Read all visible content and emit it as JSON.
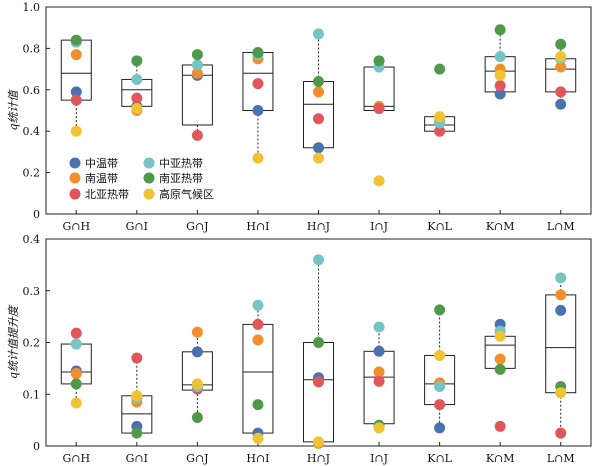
{
  "chart_data": [
    {
      "type": "box",
      "ylabel": "q统计值",
      "ylim": [
        0,
        1.0
      ],
      "yticks": [
        "0",
        "0.2",
        "0.4",
        "0.6",
        "0.8",
        "1.0"
      ],
      "categories": [
        "G∩H",
        "G∩I",
        "G∩J",
        "H∩I",
        "H∩J",
        "I∩J",
        "K∩L",
        "K∩M",
        "L∩M"
      ],
      "boxes": [
        {
          "q1": 0.55,
          "median": 0.68,
          "q3": 0.84,
          "min": 0.4,
          "max": 0.84
        },
        {
          "q1": 0.52,
          "median": 0.6,
          "q3": 0.65,
          "min": 0.5,
          "max": 0.74
        },
        {
          "q1": 0.43,
          "median": 0.67,
          "q3": 0.72,
          "min": 0.38,
          "max": 0.77
        },
        {
          "q1": 0.5,
          "median": 0.68,
          "q3": 0.78,
          "min": 0.27,
          "max": 0.78
        },
        {
          "q1": 0.32,
          "median": 0.53,
          "q3": 0.64,
          "min": 0.27,
          "max": 0.87
        },
        {
          "q1": 0.5,
          "median": 0.52,
          "q3": 0.71,
          "min": 0.5,
          "max": 0.74
        },
        {
          "q1": 0.4,
          "median": 0.43,
          "q3": 0.47,
          "min": 0.4,
          "max": 0.47
        },
        {
          "q1": 0.59,
          "median": 0.69,
          "q3": 0.76,
          "min": 0.57,
          "max": 0.89
        },
        {
          "q1": 0.59,
          "median": 0.7,
          "q3": 0.75,
          "min": 0.53,
          "max": 0.82
        }
      ],
      "series": [
        {
          "name": "中温带",
          "color": "#4a72b0",
          "values": [
            0.59,
            0.52,
            0.67,
            0.5,
            0.32,
            0.51,
            0.44,
            0.58,
            0.53
          ]
        },
        {
          "name": "南温带",
          "color": "#f28e2b",
          "values": [
            0.77,
            0.5,
            0.68,
            0.75,
            0.59,
            0.52,
            0.45,
            0.7,
            0.71
          ]
        },
        {
          "name": "北亚热带",
          "color": "#e15759",
          "values": [
            0.55,
            0.56,
            0.38,
            0.63,
            0.46,
            0.51,
            0.4,
            0.62,
            0.59
          ]
        },
        {
          "name": "中亚热带",
          "color": "#76c5c4",
          "values": [
            0.83,
            0.65,
            0.72,
            0.77,
            0.87,
            0.71,
            0.44,
            0.76,
            0.75
          ]
        },
        {
          "name": "南亚热带",
          "color": "#4e9a4a",
          "values": [
            0.84,
            0.74,
            0.77,
            0.78,
            0.64,
            0.74,
            0.7,
            0.89,
            0.82
          ]
        },
        {
          "name": "高原气候区",
          "color": "#f1c232",
          "values": [
            0.4,
            0.51,
            null,
            0.27,
            0.27,
            0.16,
            0.47,
            0.67,
            0.76
          ]
        }
      ],
      "legend": "lower-left"
    },
    {
      "type": "box",
      "ylabel": "q统计值提升度",
      "ylim": [
        0,
        0.4
      ],
      "yticks": [
        "0",
        "0.1",
        "0.2",
        "0.3",
        "0.4"
      ],
      "categories": [
        "G∩H",
        "G∩I",
        "G∩J",
        "H∩I",
        "H∩J",
        "I∩J",
        "K∩L",
        "K∩M",
        "L∩M"
      ],
      "boxes": [
        {
          "q1": 0.12,
          "median": 0.143,
          "q3": 0.197,
          "min": 0.083,
          "max": 0.218
        },
        {
          "q1": 0.025,
          "median": 0.062,
          "q3": 0.097,
          "min": 0.025,
          "max": 0.17
        },
        {
          "q1": 0.108,
          "median": 0.118,
          "q3": 0.182,
          "min": 0.055,
          "max": 0.22
        },
        {
          "q1": 0.025,
          "median": 0.143,
          "q3": 0.235,
          "min": 0.015,
          "max": 0.272
        },
        {
          "q1": 0.008,
          "median": 0.128,
          "q3": 0.2,
          "min": 0.005,
          "max": 0.36
        },
        {
          "q1": 0.043,
          "median": 0.133,
          "q3": 0.183,
          "min": 0.035,
          "max": 0.23
        },
        {
          "q1": 0.08,
          "median": 0.12,
          "q3": 0.175,
          "min": 0.035,
          "max": 0.263
        },
        {
          "q1": 0.15,
          "median": 0.195,
          "q3": 0.212,
          "min": 0.148,
          "max": 0.237
        },
        {
          "q1": 0.103,
          "median": 0.19,
          "q3": 0.292,
          "min": 0.025,
          "max": 0.325
        }
      ],
      "series": [
        {
          "name": "中温带",
          "color": "#4a72b0",
          "values": [
            0.145,
            0.038,
            0.182,
            0.025,
            0.132,
            0.183,
            0.035,
            0.235,
            0.262
          ]
        },
        {
          "name": "南温带",
          "color": "#f28e2b",
          "values": [
            0.14,
            0.085,
            0.22,
            0.205,
            0.005,
            0.143,
            0.122,
            0.168,
            0.292
          ]
        },
        {
          "name": "北亚热带",
          "color": "#e15759",
          "values": [
            0.218,
            0.17,
            0.11,
            0.235,
            0.124,
            0.125,
            0.08,
            0.038,
            0.025
          ]
        },
        {
          "name": "中亚热带",
          "color": "#76c5c4",
          "values": [
            0.197,
            0.092,
            0.115,
            0.272,
            0.36,
            0.23,
            0.115,
            0.222,
            0.325
          ]
        },
        {
          "name": "南亚热带",
          "color": "#4e9a4a",
          "values": [
            0.12,
            0.025,
            0.055,
            0.08,
            0.2,
            0.04,
            0.263,
            0.148,
            0.115
          ]
        },
        {
          "name": "高原气候区",
          "color": "#f1c232",
          "values": [
            0.083,
            0.097,
            0.12,
            0.015,
            0.008,
            0.035,
            0.175,
            0.212,
            0.103
          ]
        }
      ]
    }
  ]
}
